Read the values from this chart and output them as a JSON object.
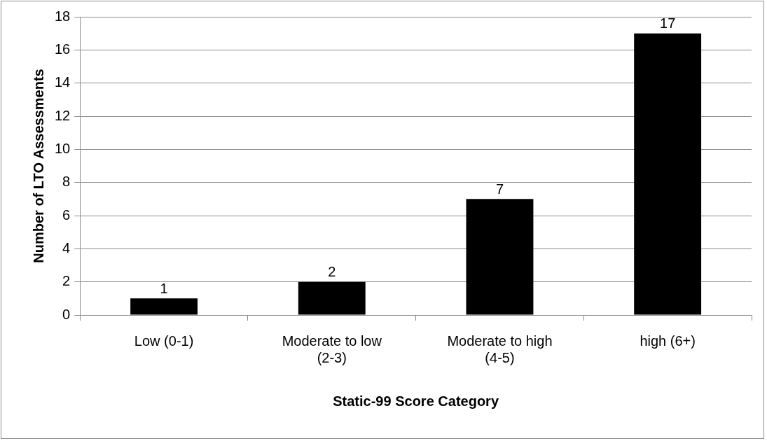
{
  "chart_data": {
    "type": "bar",
    "xlabel": "Static-99 Score Category",
    "ylabel": "Number of LTO Assessments",
    "categories": [
      "Low (0-1)",
      "Moderate to low (2-3)",
      "Moderate to high (4-5)",
      "high (6+)"
    ],
    "values": [
      1,
      2,
      7,
      17
    ],
    "color": "#000000",
    "ylim": [
      0,
      18
    ],
    "yticks": [
      0,
      2,
      4,
      6,
      8,
      10,
      12,
      14,
      16,
      18
    ],
    "grid": "y",
    "data_labels": true,
    "legend": false
  }
}
